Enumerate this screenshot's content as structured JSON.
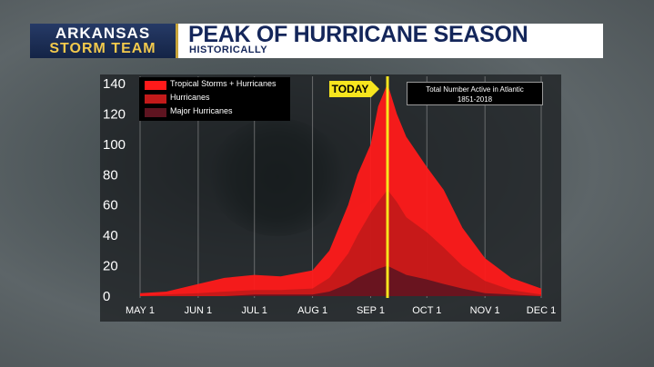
{
  "brand": {
    "line1": "ARKANSAS",
    "line2": "STORM TEAM"
  },
  "header": {
    "title": "PEAK OF HURRICANE SEASON",
    "subtitle": "HISTORICALLY"
  },
  "today_label": "TODAY",
  "info": {
    "line1": "Total Number Active in Atlantic",
    "line2": "1851-2018"
  },
  "colors": {
    "tropical": "#ff1a1a",
    "hurricanes": "#c21a1a",
    "major": "#5e1420",
    "today_line": "#f7e51e"
  },
  "chart_data": {
    "type": "area",
    "title": "",
    "xlabel": "",
    "ylabel": "",
    "ylim": [
      0,
      140
    ],
    "yticks": [
      0,
      20,
      40,
      60,
      80,
      100,
      120,
      140
    ],
    "x_range": [
      "May 1",
      "Dec 1"
    ],
    "categories": [
      "MAY 1",
      "JUN 1",
      "JUL 1",
      "AUG 1",
      "SEP 1",
      "OCT 1",
      "NOV 1",
      "DEC 1"
    ],
    "today": "Sep 10",
    "grid": true,
    "legend_position": "top-left",
    "series": [
      {
        "name": "Tropical Storms + Hurricanes",
        "color": "#ff1a1a",
        "x": [
          "May 1",
          "May 15",
          "Jun 1",
          "Jun 15",
          "Jul 1",
          "Jul 15",
          "Aug 1",
          "Aug 10",
          "Aug 20",
          "Aug 25",
          "Sep 1",
          "Sep 5",
          "Sep 10",
          "Sep 15",
          "Sep 20",
          "Oct 1",
          "Oct 10",
          "Oct 20",
          "Nov 1",
          "Nov 15",
          "Dec 1"
        ],
        "values": [
          2,
          3,
          8,
          12,
          14,
          13,
          17,
          30,
          60,
          80,
          100,
          125,
          140,
          120,
          105,
          85,
          70,
          45,
          25,
          12,
          5
        ]
      },
      {
        "name": "Hurricanes",
        "color": "#c21a1a",
        "x": [
          "May 1",
          "May 15",
          "Jun 1",
          "Jun 15",
          "Jul 1",
          "Jul 15",
          "Aug 1",
          "Aug 10",
          "Aug 20",
          "Aug 25",
          "Sep 1",
          "Sep 5",
          "Sep 10",
          "Sep 15",
          "Sep 20",
          "Oct 1",
          "Oct 10",
          "Oct 20",
          "Nov 1",
          "Nov 15",
          "Dec 1"
        ],
        "values": [
          0,
          1,
          2,
          3,
          4,
          4,
          5,
          12,
          28,
          40,
          55,
          62,
          70,
          62,
          52,
          42,
          32,
          20,
          10,
          4,
          1
        ]
      },
      {
        "name": "Major Hurricanes",
        "color": "#5e1420",
        "x": [
          "May 1",
          "May 15",
          "Jun 1",
          "Jun 15",
          "Jul 1",
          "Jul 15",
          "Aug 1",
          "Aug 10",
          "Aug 20",
          "Aug 25",
          "Sep 1",
          "Sep 5",
          "Sep 10",
          "Sep 15",
          "Sep 20",
          "Oct 1",
          "Oct 10",
          "Oct 20",
          "Nov 1",
          "Nov 15",
          "Dec 1"
        ],
        "values": [
          0,
          0,
          0,
          0,
          1,
          1,
          1,
          3,
          8,
          12,
          16,
          18,
          20,
          17,
          14,
          11,
          8,
          5,
          2,
          1,
          0
        ]
      }
    ]
  }
}
